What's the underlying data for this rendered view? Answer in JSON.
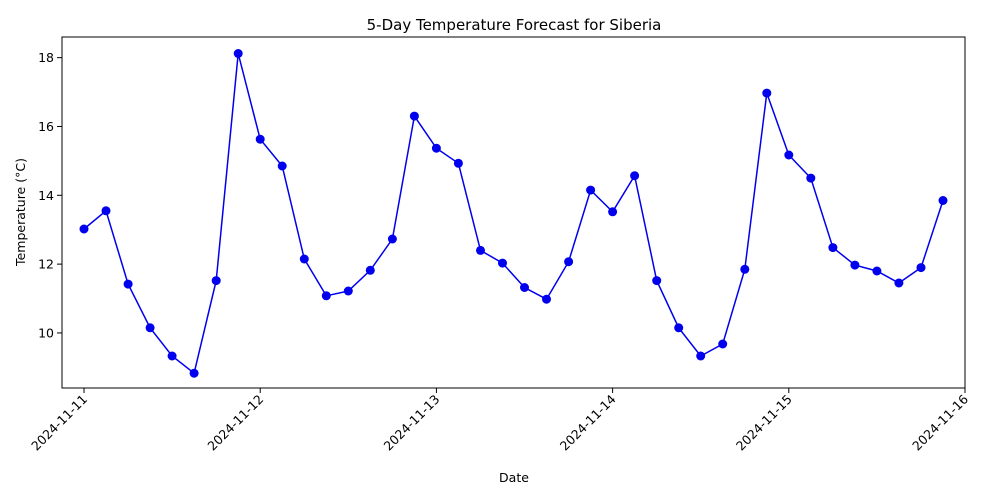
{
  "chart_data": {
    "type": "line",
    "title": "5-Day Temperature Forecast for Siberia",
    "xlabel": "Date",
    "ylabel": "Temperature (°C)",
    "grid": false,
    "legend": "none",
    "color": "#0000ee",
    "x_ticks": [
      "2024-11-11",
      "2024-11-12",
      "2024-11-13",
      "2024-11-14",
      "2024-11-15",
      "2024-11-16"
    ],
    "y_ticks": [
      10,
      12,
      14,
      16,
      18
    ],
    "ylim": [
      8.4,
      18.6
    ],
    "xlim": [
      "2024-11-10T21:00",
      "2024-11-16T00:00"
    ],
    "series": [
      {
        "x": [
          "2024-11-11T00:00",
          "2024-11-11T03:00",
          "2024-11-11T06:00",
          "2024-11-11T09:00",
          "2024-11-11T12:00",
          "2024-11-11T15:00",
          "2024-11-11T18:00",
          "2024-11-11T21:00",
          "2024-11-12T00:00",
          "2024-11-12T03:00",
          "2024-11-12T06:00",
          "2024-11-12T09:00",
          "2024-11-12T12:00",
          "2024-11-12T15:00",
          "2024-11-12T18:00",
          "2024-11-12T21:00",
          "2024-11-13T00:00",
          "2024-11-13T03:00",
          "2024-11-13T06:00",
          "2024-11-13T09:00",
          "2024-11-13T12:00",
          "2024-11-13T15:00",
          "2024-11-13T18:00",
          "2024-11-13T21:00",
          "2024-11-14T00:00",
          "2024-11-14T03:00",
          "2024-11-14T06:00",
          "2024-11-14T09:00",
          "2024-11-14T12:00",
          "2024-11-14T15:00",
          "2024-11-14T18:00",
          "2024-11-14T21:00",
          "2024-11-15T00:00",
          "2024-11-15T03:00",
          "2024-11-15T06:00",
          "2024-11-15T09:00",
          "2024-11-15T12:00",
          "2024-11-15T15:00",
          "2024-11-15T18:00",
          "2024-11-15T21:00"
        ],
        "y": [
          13.02,
          13.55,
          11.42,
          10.15,
          9.33,
          8.83,
          11.52,
          18.12,
          15.63,
          14.85,
          12.15,
          11.08,
          11.22,
          11.82,
          12.73,
          16.3,
          15.37,
          14.93,
          12.4,
          12.03,
          11.32,
          10.98,
          12.07,
          14.15,
          13.52,
          14.57,
          11.52,
          10.15,
          9.33,
          9.68,
          11.85,
          16.97,
          15.17,
          14.5,
          12.48,
          11.97,
          11.8,
          11.45,
          11.9,
          13.85
        ]
      }
    ]
  }
}
